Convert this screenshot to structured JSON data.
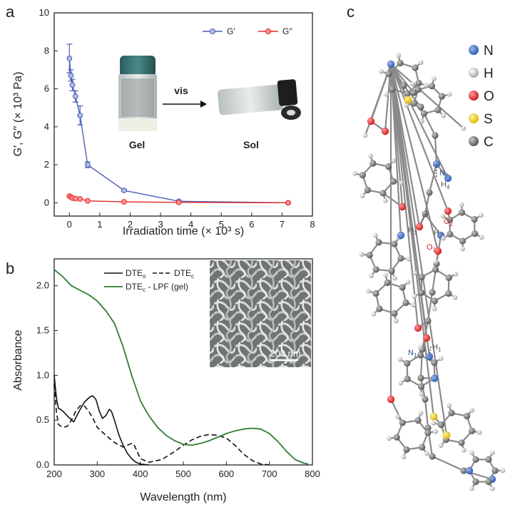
{
  "panels": {
    "a": "a",
    "b": "b",
    "c": "c"
  },
  "chart_data": [
    {
      "type": "line",
      "panel": "a",
      "xlabel": "Irradiation time (× 10³ s)",
      "ylabel": "G′, G′′ (× 10³ Pa)",
      "xlim": [
        -0.5,
        8
      ],
      "ylim": [
        -0.7,
        10
      ],
      "xticks": [
        0,
        1,
        2,
        3,
        4,
        5,
        6,
        7,
        8
      ],
      "yticks": [
        0,
        2,
        4,
        6,
        8,
        10
      ],
      "legend_position": "top-right",
      "series": [
        {
          "name": "G′",
          "color": "#4a5fb8",
          "x": [
            0,
            0.05,
            0.1,
            0.2,
            0.35,
            0.6,
            1.8,
            3.6,
            7.2
          ],
          "y": [
            7.6,
            6.7,
            6.2,
            5.6,
            4.6,
            2.0,
            0.65,
            0.08,
            0.0
          ],
          "err": [
            0.75,
            0.3,
            0.3,
            0.3,
            0.5,
            0.15,
            0.05,
            0.03,
            0.02
          ]
        },
        {
          "name": "G′′",
          "color": "#e2282a",
          "x": [
            0,
            0.05,
            0.1,
            0.2,
            0.35,
            0.6,
            1.8,
            3.6,
            7.2
          ],
          "y": [
            0.35,
            0.3,
            0.25,
            0.22,
            0.2,
            0.1,
            0.05,
            0.02,
            0.0
          ]
        }
      ],
      "inset": {
        "gel_label": "Gel",
        "sol_label": "Sol",
        "arrow_label": "vis"
      }
    },
    {
      "type": "line",
      "panel": "b",
      "xlabel": "Wavelength (nm)",
      "ylabel": "Absorbance",
      "xlim": [
        200,
        800
      ],
      "ylim": [
        0,
        2.3
      ],
      "xticks": [
        200,
        300,
        400,
        500,
        600,
        700,
        800
      ],
      "yticks": [
        0.0,
        0.5,
        1.0,
        1.5,
        2.0
      ],
      "legend_position": "top-left",
      "series": [
        {
          "name": "DTEo",
          "legend_main": "DTE",
          "legend_sub": "o",
          "color": "#111111",
          "dash": false,
          "x": [
            200,
            203,
            206,
            210,
            215,
            220,
            230,
            245,
            258,
            270,
            283,
            290,
            297,
            305,
            312,
            320,
            328,
            333,
            340,
            350,
            360,
            370,
            380,
            390,
            400,
            420
          ],
          "y": [
            1.0,
            0.85,
            0.72,
            0.63,
            0.62,
            0.6,
            0.55,
            0.48,
            0.6,
            0.7,
            0.76,
            0.77,
            0.73,
            0.6,
            0.52,
            0.55,
            0.62,
            0.6,
            0.5,
            0.34,
            0.22,
            0.13,
            0.07,
            0.03,
            0.01,
            0.0
          ]
        },
        {
          "name": "DTEc",
          "legend_main": "DTE",
          "legend_sub": "c",
          "color": "#111111",
          "dash": true,
          "x": [
            200,
            205,
            210,
            220,
            230,
            240,
            250,
            260,
            270,
            280,
            290,
            300,
            320,
            340,
            360,
            370,
            380,
            385,
            390,
            400,
            420,
            450,
            480,
            500,
            520,
            540,
            560,
            580,
            600,
            620,
            640,
            660,
            680,
            700
          ],
          "y": [
            0.9,
            0.6,
            0.45,
            0.42,
            0.43,
            0.5,
            0.6,
            0.66,
            0.66,
            0.6,
            0.52,
            0.42,
            0.33,
            0.25,
            0.2,
            0.22,
            0.24,
            0.23,
            0.18,
            0.07,
            0.03,
            0.06,
            0.15,
            0.22,
            0.28,
            0.32,
            0.34,
            0.33,
            0.3,
            0.22,
            0.12,
            0.05,
            0.01,
            0.0
          ]
        },
        {
          "name": "DTEc - LPF (gel)",
          "legend_main": "DTE",
          "legend_sub": "c",
          "legend_rest": " - LPF (gel)",
          "color": "#2e7d32",
          "dash": false,
          "x": [
            200,
            220,
            240,
            260,
            280,
            300,
            320,
            340,
            350,
            360,
            380,
            400,
            410,
            420,
            440,
            460,
            480,
            500,
            520,
            540,
            560,
            580,
            600,
            620,
            640,
            660,
            680,
            700,
            720,
            740,
            760,
            780,
            790
          ],
          "y": [
            2.18,
            2.1,
            2.0,
            1.95,
            1.9,
            1.83,
            1.72,
            1.58,
            1.45,
            1.32,
            1.0,
            0.72,
            0.63,
            0.55,
            0.42,
            0.33,
            0.27,
            0.23,
            0.22,
            0.24,
            0.27,
            0.31,
            0.35,
            0.38,
            0.4,
            0.41,
            0.4,
            0.35,
            0.26,
            0.15,
            0.06,
            0.02,
            0.01
          ]
        }
      ],
      "inset": {
        "scale_label": "200 nm"
      }
    }
  ],
  "structure": {
    "legend": [
      {
        "label": "N",
        "color": "#2f5fb3"
      },
      {
        "label": "H",
        "color": "#bdbdbd"
      },
      {
        "label": "O",
        "color": "#e2282a"
      },
      {
        "label": "S",
        "color": "#f4d01f"
      },
      {
        "label": "C",
        "color": "#7a7a7a"
      }
    ],
    "atom_labels": [
      {
        "main": "N",
        "sub": "2",
        "color": "#2f4f9a"
      },
      {
        "main": "H",
        "sub": "4",
        "color": "#555555"
      },
      {
        "main": "O",
        "sub": "2",
        "color": "#c62828"
      },
      {
        "main": "H",
        "sub": "3",
        "color": "#555555"
      },
      {
        "main": "H",
        "sub": "2",
        "color": "#555555"
      },
      {
        "main": "O",
        "sub": "1",
        "color": "#c62828"
      },
      {
        "main": "N",
        "sub": "1",
        "color": "#2f4f9a"
      },
      {
        "main": "H",
        "sub": "1",
        "color": "#555555"
      }
    ]
  }
}
